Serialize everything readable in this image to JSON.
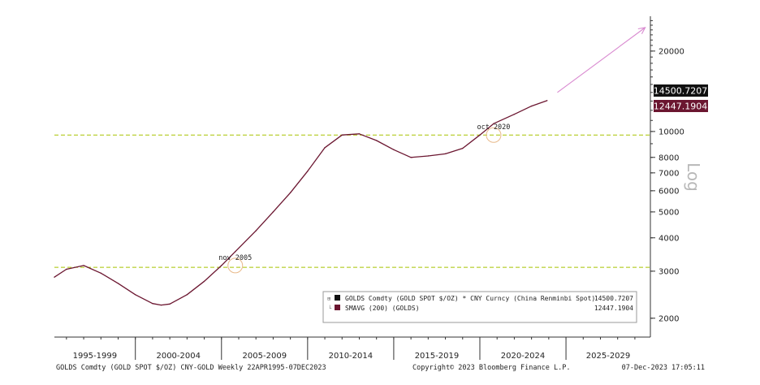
{
  "chart_data": {
    "type": "line",
    "title": "",
    "scale": "log",
    "ylabel": "Log",
    "ylim": [
      1700,
      27000
    ],
    "xlim": [
      1995.3,
      2029.9
    ],
    "y_ticks": [
      2000,
      3000,
      4000,
      5000,
      6000,
      7000,
      8000,
      10000,
      20000
    ],
    "y_tick_labels": [
      "2000",
      "3000",
      "4000",
      "5000",
      "6000",
      "7000",
      "8000",
      "10000",
      "20000"
    ],
    "x_period_labels": [
      "1995-1999",
      "2000-2004",
      "2005-2009",
      "2010-2014",
      "2015-2019",
      "2020-2024",
      "2025-2029"
    ],
    "grid": false,
    "legend_position": "bottom-right",
    "series": [
      {
        "name": "SMAVG (200) (GOLDS)",
        "color": "#6b1630",
        "x": [
          1995.3,
          1996.0,
          1997.0,
          1998.0,
          1999.0,
          2000.0,
          2001.0,
          2001.5,
          2002.0,
          2003.0,
          2004.0,
          2005.0,
          2005.8,
          2007.0,
          2008.0,
          2009.0,
          2010.0,
          2011.0,
          2012.0,
          2013.0,
          2014.0,
          2015.0,
          2016.0,
          2017.0,
          2018.0,
          2019.0,
          2020.0,
          2020.8,
          2022.0,
          2023.0,
          2023.9
        ],
        "values": [
          2850,
          3050,
          3150,
          2950,
          2700,
          2450,
          2270,
          2240,
          2260,
          2450,
          2750,
          3150,
          3550,
          4250,
          5000,
          5900,
          7100,
          8700,
          9700,
          9800,
          9250,
          8550,
          8000,
          8100,
          8250,
          8650,
          9700,
          10700,
          11600,
          12447.1904,
          13050
        ]
      }
    ],
    "current_values": {
      "price": {
        "label": "14500.7207",
        "value": 14500.7207,
        "bg": "#111111",
        "fg": "#ffffff"
      },
      "smavg": {
        "label": "12447.1904",
        "value": 12447.1904,
        "bg": "#6b1630",
        "fg": "#ffffff"
      }
    },
    "reference_lines": [
      {
        "value": 3100,
        "color": "#a8c400"
      },
      {
        "value": 9700,
        "color": "#a8c400"
      }
    ],
    "annotations": [
      {
        "text": "nov 2005",
        "x": 2005.8,
        "y": 3150
      },
      {
        "text": "oct 2020",
        "x": 2020.8,
        "y": 9700
      }
    ],
    "projection_arrow": {
      "color": "#d98ad0",
      "x_from": 2024.5,
      "y_from": 14000,
      "x_to": 2029.6,
      "y_to": 24500
    },
    "legend": [
      {
        "text": "GOLDS Comdty (GOLD SPOT $/OZ) * CNY Curncy (China Renminbi Spot)",
        "value": "14500.7207",
        "color": "#111111"
      },
      {
        "text": "SMAVG (200) (GOLDS)",
        "value": "12447.1904",
        "color": "#6b1630"
      }
    ]
  },
  "footer": {
    "left": "GOLDS Comdty (GOLD SPOT $/OZ) CNY-GOLD  Weekly 22APR1995-07DEC2023",
    "center": "Copyright© 2023 Bloomberg Finance L.P.",
    "right": "07-Dec-2023 17:05:11"
  }
}
